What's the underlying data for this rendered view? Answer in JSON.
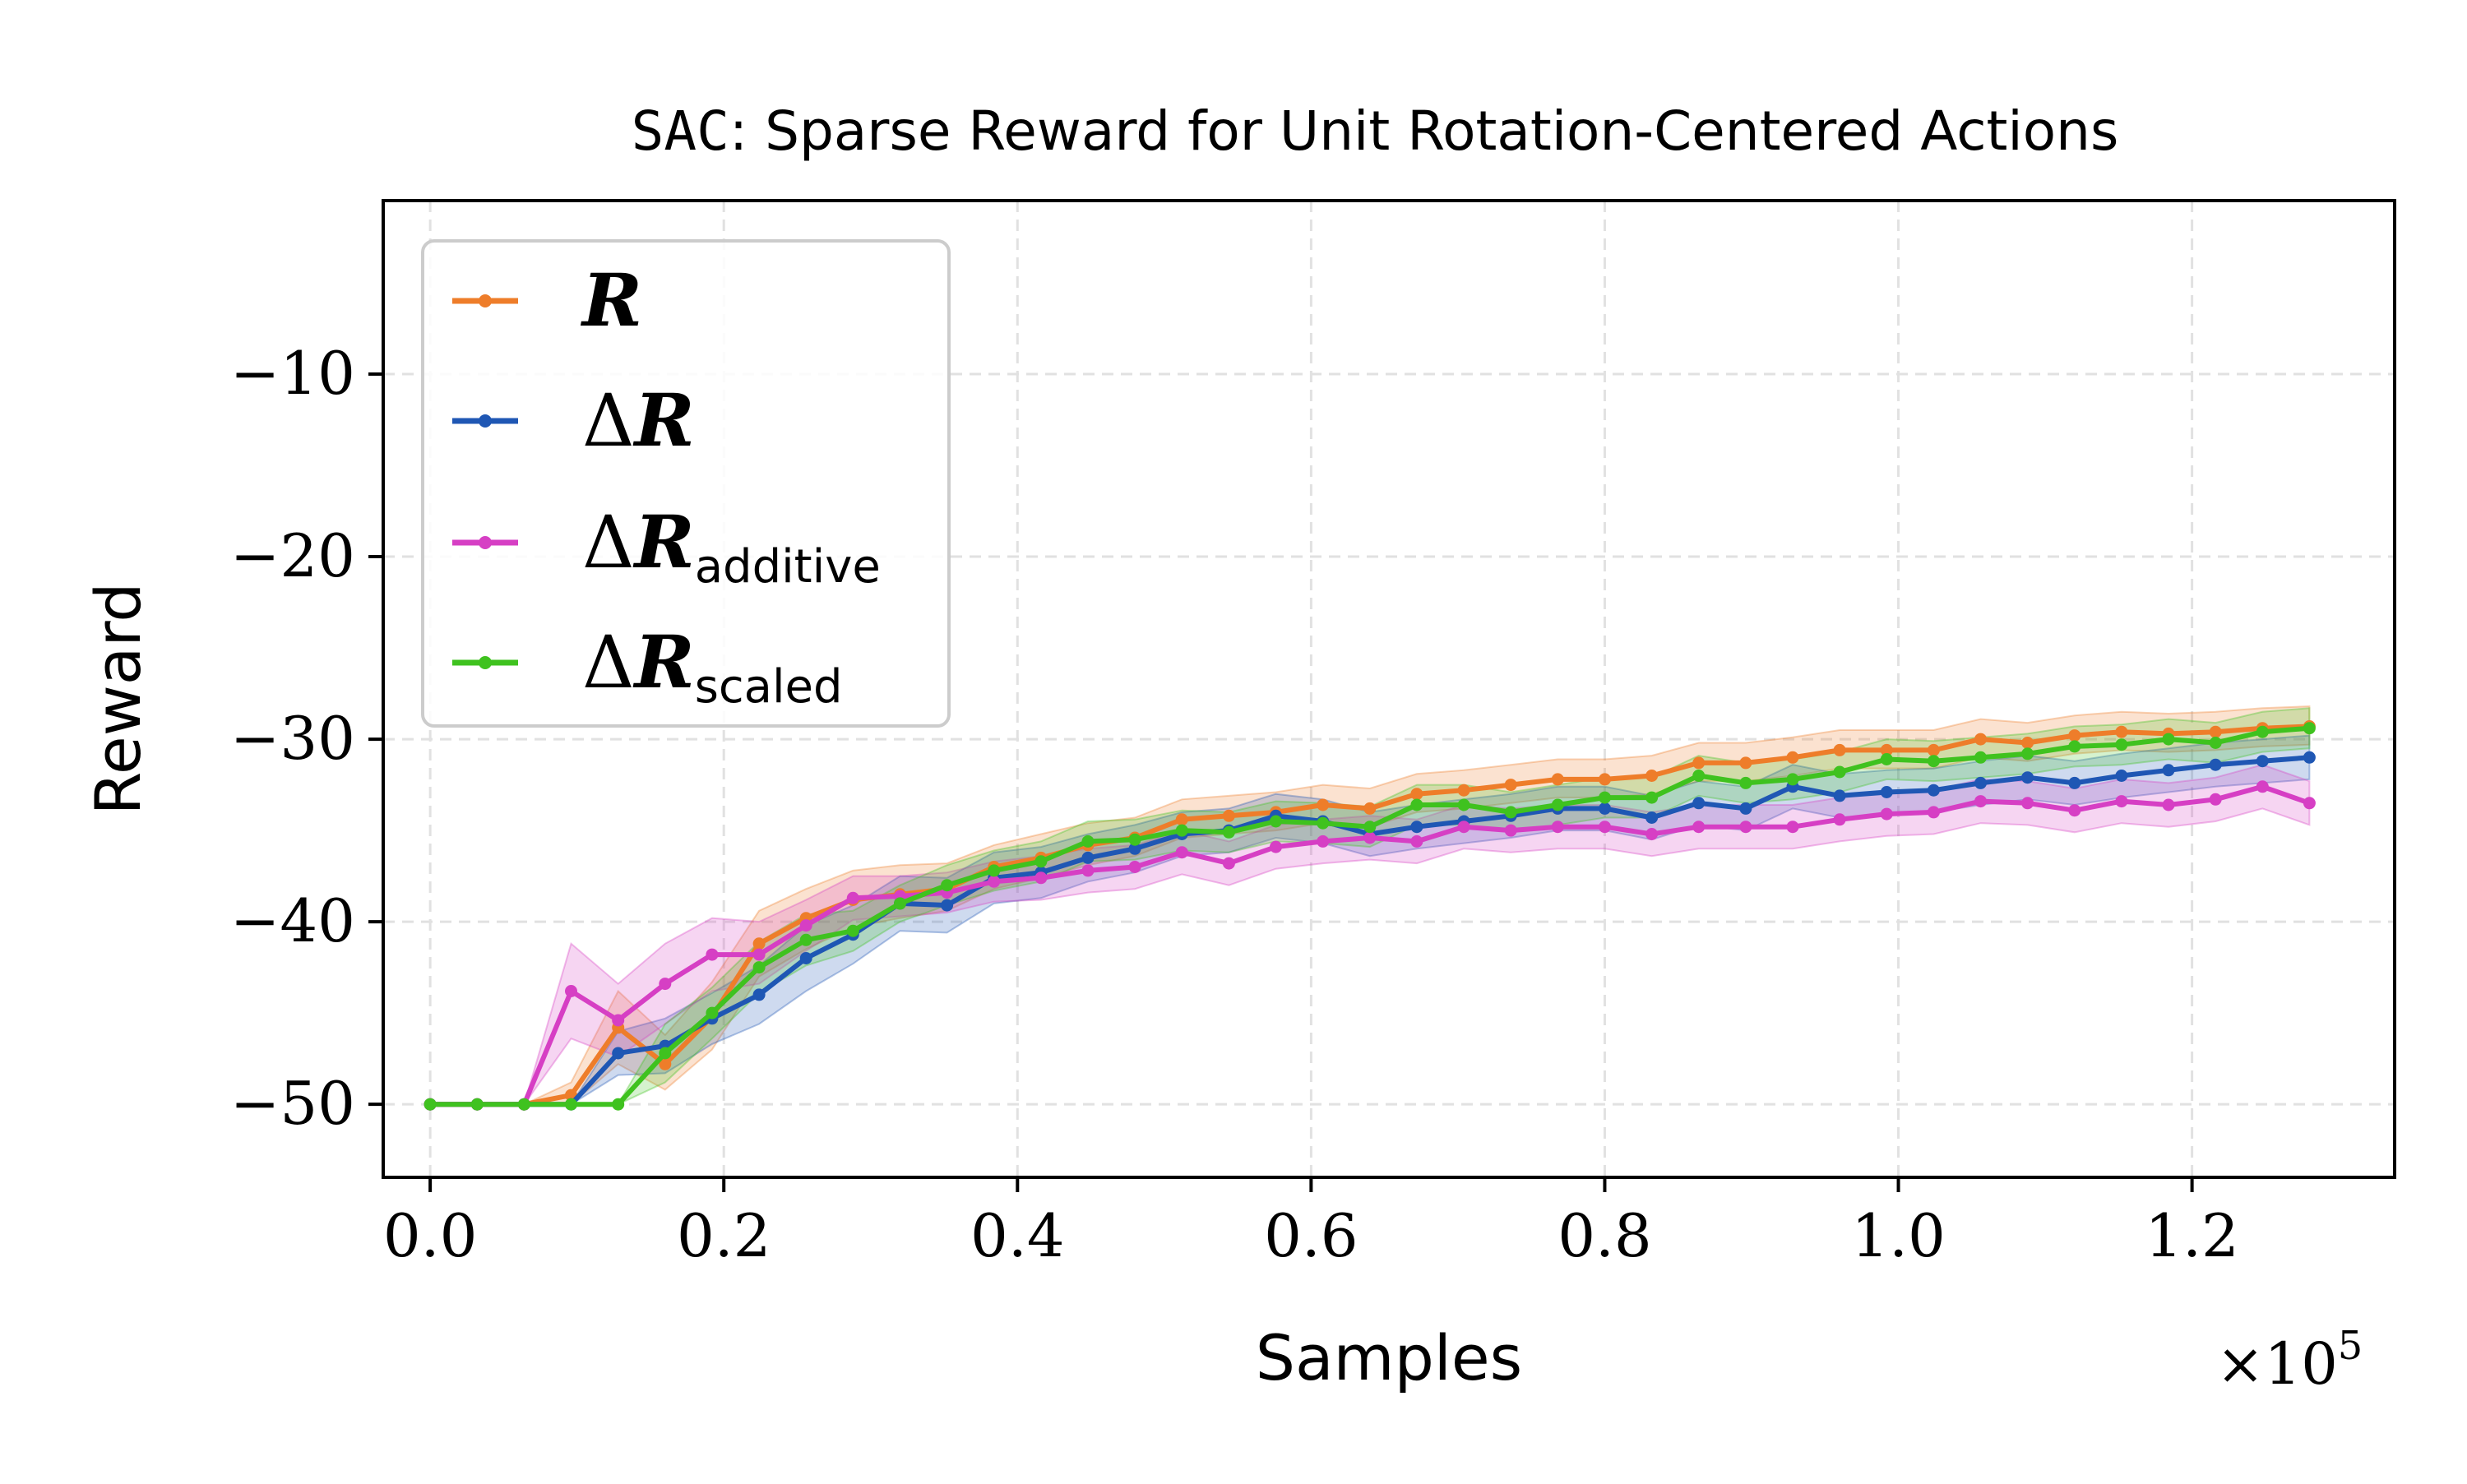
{
  "chart_data": {
    "type": "line",
    "title_prefix": "SAC",
    "title_rest": ": Sparse Reward for Unit Rotation-Centered Actions",
    "xlabel": "Samples",
    "ylabel": "Reward",
    "x_multiplier_base": "×10",
    "x_multiplier_exp": "5",
    "xlim": [
      -0.032,
      1.338
    ],
    "ylim": [
      -54.0,
      -0.5
    ],
    "xticks": [
      0.0,
      0.2,
      0.4,
      0.6,
      0.8,
      1.0,
      1.2
    ],
    "xtick_labels": [
      "0.0",
      "0.2",
      "0.4",
      "0.6",
      "0.8",
      "1.0",
      "1.2"
    ],
    "yticks": [
      -50,
      -40,
      -30,
      -20,
      -10
    ],
    "ytick_labels": [
      "−50",
      "−40",
      "−30",
      "−20",
      "−10"
    ],
    "grid": true,
    "legend_position": "top-left",
    "x": [
      0.0,
      0.032,
      0.064,
      0.096,
      0.128,
      0.16,
      0.192,
      0.224,
      0.256,
      0.288,
      0.32,
      0.352,
      0.384,
      0.416,
      0.448,
      0.48,
      0.512,
      0.544,
      0.576,
      0.608,
      0.64,
      0.672,
      0.704,
      0.736,
      0.768,
      0.8,
      0.832,
      0.864,
      0.896,
      0.928,
      0.96,
      0.992,
      1.024,
      1.056,
      1.088,
      1.12,
      1.152,
      1.184,
      1.216,
      1.248,
      1.28
    ],
    "series": [
      {
        "name": "R",
        "legend_main": "R",
        "legend_prefix": "",
        "legend_sub": "",
        "color": "#ee7d2a",
        "values": [
          -50,
          -50,
          -50,
          -49.5,
          -45.8,
          -47.8,
          -45.2,
          -41.2,
          -39.8,
          -38.8,
          -38.5,
          -38.2,
          -37.0,
          -36.5,
          -35.8,
          -35.4,
          -34.4,
          -34.2,
          -34.0,
          -33.6,
          -33.8,
          -33.0,
          -32.8,
          -32.5,
          -32.2,
          -32.2,
          -32.0,
          -31.3,
          -31.3,
          -31.0,
          -30.6,
          -30.6,
          -30.6,
          -30.0,
          -30.2,
          -29.8,
          -29.6,
          -29.7,
          -29.6,
          -29.4,
          -29.3
        ],
        "lower": [
          -50,
          -50,
          -50,
          -50,
          -47.8,
          -49.2,
          -47.0,
          -43.0,
          -41.5,
          -40.3,
          -39.8,
          -39.4,
          -38.2,
          -37.6,
          -36.9,
          -36.4,
          -35.4,
          -35.2,
          -35.0,
          -34.6,
          -34.8,
          -34.0,
          -33.8,
          -33.5,
          -33.2,
          -33.2,
          -33.0,
          -32.3,
          -32.3,
          -32.0,
          -31.6,
          -31.6,
          -31.6,
          -31.0,
          -31.2,
          -30.8,
          -30.6,
          -30.7,
          -30.6,
          -30.4,
          -30.3
        ],
        "upper": [
          -50,
          -50,
          -50,
          -48.8,
          -43.8,
          -46.2,
          -43.3,
          -39.4,
          -38.2,
          -37.2,
          -36.9,
          -36.8,
          -35.8,
          -35.2,
          -34.6,
          -34.3,
          -33.3,
          -33.1,
          -32.9,
          -32.5,
          -32.7,
          -31.9,
          -31.7,
          -31.4,
          -31.1,
          -31.1,
          -30.9,
          -30.2,
          -30.2,
          -29.9,
          -29.5,
          -29.5,
          -29.5,
          -28.9,
          -29.1,
          -28.7,
          -28.5,
          -28.6,
          -28.5,
          -28.3,
          -28.2
        ]
      },
      {
        "name": "ΔR",
        "legend_main": "R",
        "legend_prefix": "Δ",
        "legend_sub": "",
        "color": "#1f57b4",
        "values": [
          -50,
          -50,
          -50,
          -50,
          -47.2,
          -46.8,
          -45.3,
          -44.0,
          -42.0,
          -40.7,
          -39.0,
          -39.1,
          -37.6,
          -37.3,
          -36.5,
          -36.0,
          -35.2,
          -35.0,
          -34.2,
          -34.5,
          -35.2,
          -34.8,
          -34.5,
          -34.2,
          -33.8,
          -33.8,
          -34.3,
          -33.5,
          -33.8,
          -32.6,
          -33.1,
          -32.9,
          -32.8,
          -32.4,
          -32.1,
          -32.4,
          -32.0,
          -31.7,
          -31.4,
          -31.2,
          -31.0
        ],
        "lower": [
          -50,
          -50,
          -50,
          -50,
          -48.4,
          -48.3,
          -46.7,
          -45.6,
          -43.8,
          -42.3,
          -40.5,
          -40.6,
          -39.0,
          -38.7,
          -37.8,
          -37.3,
          -36.4,
          -36.2,
          -35.4,
          -35.7,
          -36.4,
          -36.0,
          -35.7,
          -35.4,
          -35.0,
          -35.0,
          -35.5,
          -34.7,
          -35.0,
          -33.8,
          -34.3,
          -34.1,
          -34.0,
          -33.6,
          -33.3,
          -33.6,
          -33.2,
          -32.9,
          -32.6,
          -32.4,
          -32.2
        ],
        "upper": [
          -50,
          -50,
          -50,
          -50,
          -46.0,
          -45.3,
          -43.9,
          -42.4,
          -40.2,
          -39.1,
          -37.5,
          -37.6,
          -36.2,
          -35.9,
          -35.2,
          -34.7,
          -34.0,
          -33.8,
          -33.0,
          -33.3,
          -34.0,
          -33.6,
          -33.3,
          -33.0,
          -32.6,
          -32.6,
          -33.1,
          -32.3,
          -32.6,
          -31.4,
          -31.9,
          -31.7,
          -31.6,
          -31.2,
          -30.9,
          -31.2,
          -30.8,
          -30.5,
          -30.2,
          -30.0,
          -29.8
        ]
      },
      {
        "name": "ΔR additive",
        "legend_main": "R",
        "legend_prefix": "Δ",
        "legend_sub": "additive",
        "color": "#d63fc4",
        "values": [
          -50,
          -50,
          -50,
          -43.8,
          -45.4,
          -43.4,
          -41.8,
          -41.8,
          -40.2,
          -38.7,
          -38.6,
          -38.4,
          -37.8,
          -37.6,
          -37.2,
          -37.0,
          -36.2,
          -36.8,
          -35.9,
          -35.6,
          -35.4,
          -35.6,
          -34.8,
          -35.0,
          -34.8,
          -34.8,
          -35.2,
          -34.8,
          -34.8,
          -34.8,
          -34.4,
          -34.1,
          -34.0,
          -33.4,
          -33.5,
          -33.9,
          -33.4,
          -33.6,
          -33.3,
          -32.6,
          -33.5
        ],
        "lower": [
          -50,
          -50,
          -50,
          -46.4,
          -47.4,
          -45.6,
          -43.8,
          -43.4,
          -41.6,
          -39.9,
          -39.7,
          -39.5,
          -38.9,
          -38.8,
          -38.4,
          -38.2,
          -37.4,
          -38.0,
          -37.1,
          -36.8,
          -36.6,
          -36.8,
          -36.0,
          -36.2,
          -36.0,
          -36.0,
          -36.4,
          -36.0,
          -36.0,
          -36.0,
          -35.6,
          -35.3,
          -35.2,
          -34.6,
          -34.7,
          -35.1,
          -34.6,
          -34.8,
          -34.5,
          -33.8,
          -34.7
        ],
        "upper": [
          -50,
          -50,
          -50,
          -41.2,
          -43.4,
          -41.2,
          -39.8,
          -40.0,
          -38.8,
          -37.5,
          -37.5,
          -37.3,
          -36.7,
          -36.4,
          -36.0,
          -35.8,
          -35.0,
          -35.6,
          -34.7,
          -34.4,
          -34.2,
          -34.4,
          -33.6,
          -33.8,
          -33.6,
          -33.6,
          -34.0,
          -33.6,
          -33.6,
          -33.6,
          -33.2,
          -32.9,
          -32.8,
          -32.2,
          -32.3,
          -32.7,
          -32.2,
          -32.4,
          -32.1,
          -31.4,
          -32.3
        ]
      },
      {
        "name": "ΔR scaled",
        "legend_main": "R",
        "legend_prefix": "Δ",
        "legend_sub": "scaled",
        "color": "#3fc21f",
        "values": [
          -50,
          -50,
          -50,
          -50,
          -50,
          -47.2,
          -45.0,
          -42.5,
          -41.0,
          -40.5,
          -39.0,
          -38.0,
          -37.2,
          -36.7,
          -35.6,
          -35.5,
          -35.0,
          -35.1,
          -34.5,
          -34.6,
          -34.8,
          -33.6,
          -33.6,
          -34.0,
          -33.6,
          -33.2,
          -33.2,
          -32.0,
          -32.4,
          -32.2,
          -31.8,
          -31.1,
          -31.2,
          -31.0,
          -30.8,
          -30.4,
          -30.3,
          -30.0,
          -30.2,
          -29.6,
          -29.4
        ],
        "lower": [
          -50,
          -50,
          -50,
          -50,
          -50,
          -48.8,
          -46.4,
          -43.9,
          -42.4,
          -41.6,
          -40.0,
          -39.1,
          -38.3,
          -37.8,
          -36.7,
          -36.6,
          -36.1,
          -36.2,
          -35.6,
          -35.7,
          -35.9,
          -34.7,
          -34.7,
          -35.1,
          -34.7,
          -34.3,
          -34.3,
          -33.1,
          -33.5,
          -33.3,
          -32.9,
          -32.2,
          -32.3,
          -32.1,
          -31.9,
          -31.5,
          -31.4,
          -31.1,
          -31.3,
          -30.7,
          -30.5
        ],
        "upper": [
          -50,
          -50,
          -50,
          -50,
          -50,
          -45.6,
          -43.6,
          -41.1,
          -39.6,
          -39.4,
          -38.0,
          -36.9,
          -36.1,
          -35.6,
          -34.5,
          -34.4,
          -33.9,
          -34.0,
          -33.4,
          -33.5,
          -33.7,
          -32.5,
          -32.5,
          -32.9,
          -32.5,
          -32.1,
          -32.1,
          -30.9,
          -31.3,
          -31.1,
          -30.7,
          -30.0,
          -30.1,
          -29.9,
          -29.7,
          -29.3,
          -29.2,
          -28.9,
          -29.1,
          -28.5,
          -28.3
        ]
      }
    ]
  }
}
